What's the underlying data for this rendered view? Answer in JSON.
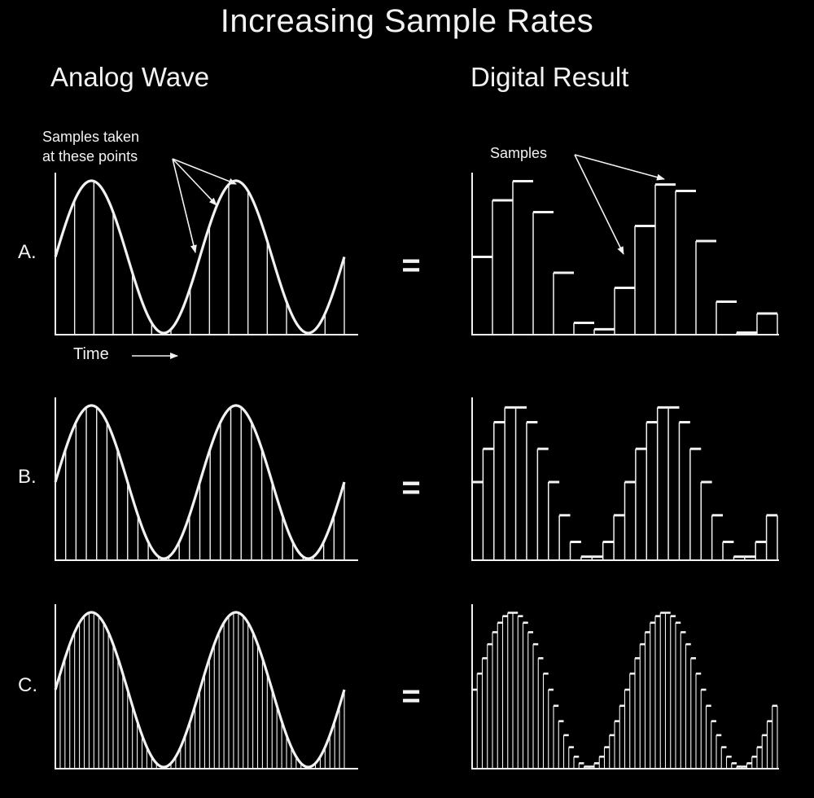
{
  "title": "Increasing Sample Rates",
  "headers": {
    "analog": "Analog Wave",
    "digital": "Digital Result"
  },
  "annotations": {
    "analog_samples_line1": "Samples taken",
    "analog_samples_line2": "at these points",
    "digital_samples": "Samples",
    "time_label": "Time"
  },
  "equals_symbol": "=",
  "rows": [
    {
      "label": "A.",
      "sample_count": 15
    },
    {
      "label": "B.",
      "sample_count": 28
    },
    {
      "label": "C.",
      "sample_count": 60
    }
  ],
  "wave": {
    "cycles": 2,
    "start_level": 0.5,
    "end_level": 0.5
  },
  "colors": {
    "background": "#000000",
    "foreground": "#f2f2f2"
  }
}
